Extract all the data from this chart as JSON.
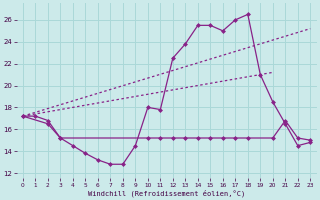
{
  "background_color": "#cceaea",
  "grid_color": "#aad8d8",
  "line_color": "#882288",
  "xlabel": "Windchill (Refroidissement éolien,°C)",
  "xlim": [
    -0.5,
    23.5
  ],
  "ylim": [
    11.5,
    27.5
  ],
  "yticks": [
    12,
    14,
    16,
    18,
    20,
    22,
    24,
    26
  ],
  "xticks": [
    0,
    1,
    2,
    3,
    4,
    5,
    6,
    7,
    8,
    9,
    10,
    11,
    12,
    13,
    14,
    15,
    16,
    17,
    18,
    19,
    20,
    21,
    22,
    23
  ],
  "series_zigzag": {
    "x": [
      0,
      2,
      3,
      4,
      5,
      6,
      7,
      8,
      9,
      10,
      11,
      12,
      13,
      14,
      15,
      16,
      17,
      18,
      19,
      20,
      21,
      22,
      23
    ],
    "y": [
      17.2,
      16.5,
      15.2,
      14.5,
      13.8,
      13.2,
      12.8,
      12.8,
      14.5,
      18.0,
      17.8,
      22.5,
      23.8,
      25.5,
      25.5,
      25.0,
      26.0,
      26.5,
      21.0,
      18.5,
      16.5,
      14.5,
      14.8
    ]
  },
  "series_flat": {
    "x": [
      0,
      1,
      2,
      3,
      10,
      11,
      12,
      13,
      14,
      15,
      16,
      17,
      18,
      20,
      21,
      22,
      23
    ],
    "y": [
      17.2,
      17.2,
      16.8,
      15.2,
      15.2,
      15.2,
      15.2,
      15.2,
      15.2,
      15.2,
      15.2,
      15.2,
      15.2,
      15.2,
      16.8,
      15.2,
      15.0
    ]
  },
  "series_upper_diagonal": {
    "x": [
      0,
      23
    ],
    "y": [
      17.2,
      25.2
    ]
  },
  "series_lower_diagonal": {
    "x": [
      0,
      20
    ],
    "y": [
      17.2,
      21.2
    ]
  }
}
